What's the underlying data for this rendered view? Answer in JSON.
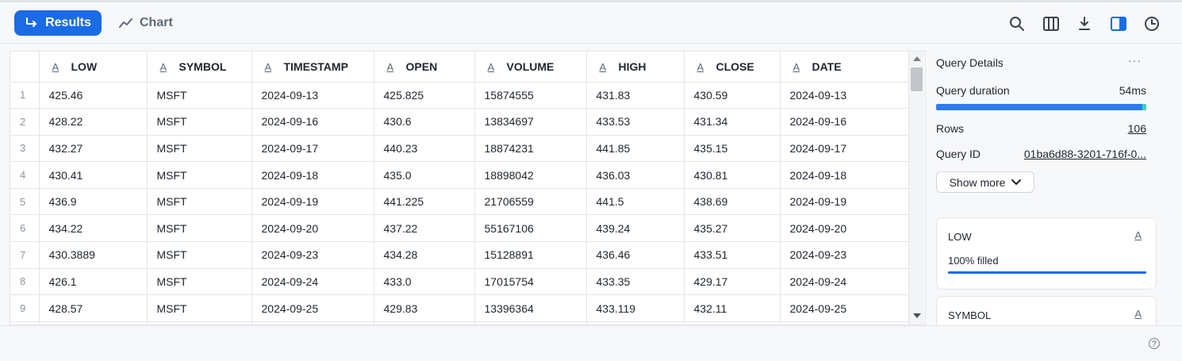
{
  "toolbar": {
    "results_label": "Results",
    "chart_label": "Chart",
    "icons": [
      "search-icon",
      "columns-icon",
      "download-icon",
      "split-panel-icon",
      "history-icon"
    ]
  },
  "grid": {
    "columns": [
      {
        "name": "LOW",
        "type_icon": "A"
      },
      {
        "name": "SYMBOL",
        "type_icon": "A"
      },
      {
        "name": "TIMESTAMP",
        "type_icon": "A"
      },
      {
        "name": "OPEN",
        "type_icon": "A"
      },
      {
        "name": "VOLUME",
        "type_icon": "A"
      },
      {
        "name": "HIGH",
        "type_icon": "A"
      },
      {
        "name": "CLOSE",
        "type_icon": "A"
      },
      {
        "name": "DATE",
        "type_icon": "A"
      }
    ],
    "rows": [
      {
        "n": "1",
        "cells": [
          "425.46",
          "MSFT",
          "2024-09-13",
          "425.825",
          "15874555",
          "431.83",
          "430.59",
          "2024-09-13"
        ]
      },
      {
        "n": "2",
        "cells": [
          "428.22",
          "MSFT",
          "2024-09-16",
          "430.6",
          "13834697",
          "433.53",
          "431.34",
          "2024-09-16"
        ]
      },
      {
        "n": "3",
        "cells": [
          "432.27",
          "MSFT",
          "2024-09-17",
          "440.23",
          "18874231",
          "441.85",
          "435.15",
          "2024-09-17"
        ]
      },
      {
        "n": "4",
        "cells": [
          "430.41",
          "MSFT",
          "2024-09-18",
          "435.0",
          "18898042",
          "436.03",
          "430.81",
          "2024-09-18"
        ]
      },
      {
        "n": "5",
        "cells": [
          "436.9",
          "MSFT",
          "2024-09-19",
          "441.225",
          "21706559",
          "441.5",
          "438.69",
          "2024-09-19"
        ]
      },
      {
        "n": "6",
        "cells": [
          "434.22",
          "MSFT",
          "2024-09-20",
          "437.22",
          "55167106",
          "439.24",
          "435.27",
          "2024-09-20"
        ]
      },
      {
        "n": "7",
        "cells": [
          "430.3889",
          "MSFT",
          "2024-09-23",
          "434.28",
          "15128891",
          "436.46",
          "433.51",
          "2024-09-23"
        ]
      },
      {
        "n": "8",
        "cells": [
          "426.1",
          "MSFT",
          "2024-09-24",
          "433.0",
          "17015754",
          "433.35",
          "429.17",
          "2024-09-24"
        ]
      },
      {
        "n": "9",
        "cells": [
          "428.57",
          "MSFT",
          "2024-09-25",
          "429.83",
          "13396364",
          "433.119",
          "432.11",
          "2024-09-25"
        ]
      },
      {
        "n": "",
        "cells": [
          "",
          "",
          "",
          "",
          "",
          "",
          "",
          ""
        ]
      }
    ]
  },
  "details": {
    "title": "Query Details",
    "more_label": "···",
    "duration_label": "Query duration",
    "duration_value": "54ms",
    "rows_label": "Rows",
    "rows_value": "106",
    "query_id_label": "Query ID",
    "query_id_value": "01ba6d88-3201-716f-0...",
    "show_more_label": "Show more",
    "column_cards": [
      {
        "name": "LOW",
        "type_icon": "A",
        "fill_text": "100% filled",
        "fill_fraction": 1.0
      },
      {
        "name": "SYMBOL",
        "type_icon": "A",
        "fill_text": "",
        "fill_fraction": 1.0
      }
    ]
  },
  "colors": {
    "accent": "#1a6ce4",
    "duration_bar": "#2f7bea",
    "duration_tail": "#3fd3a6"
  }
}
